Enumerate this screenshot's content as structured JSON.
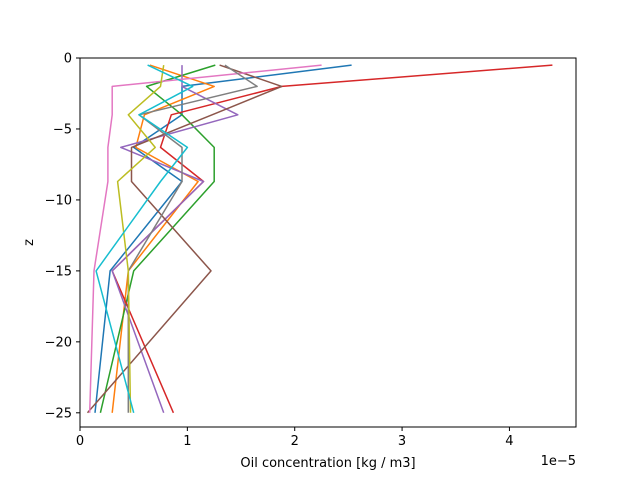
{
  "chart_data": {
    "type": "line",
    "title": "",
    "xlabel": "Oil concentration [kg / m3]",
    "ylabel": "z",
    "x_offset_label": "1e−5",
    "xlim": [
      0,
      4.62
    ],
    "ylim": [
      -26,
      0
    ],
    "x_ticks": [
      0,
      1,
      2,
      3,
      4
    ],
    "x_tick_labels": [
      "0",
      "1",
      "2",
      "3",
      "4"
    ],
    "y_ticks": [
      0,
      -5,
      -10,
      -15,
      -20,
      -25
    ],
    "y_tick_labels": [
      "0",
      "−5",
      "−10",
      "−15",
      "−20",
      "−25"
    ],
    "grid": false,
    "legend": "none",
    "z_levels": [
      -0.5,
      -2,
      -4,
      -6.3,
      -8.7,
      -15,
      -25
    ],
    "series": [
      {
        "color": "#1f77b4",
        "x": [
          2.53,
          0.95,
          0.95,
          0.5,
          0.95,
          0.28,
          0.14
        ]
      },
      {
        "color": "#ff7f0e",
        "x": [
          0.65,
          1.25,
          0.6,
          0.52,
          1.1,
          0.45,
          0.3
        ]
      },
      {
        "color": "#2ca02c",
        "x": [
          1.26,
          0.62,
          0.95,
          1.25,
          1.25,
          0.5,
          0.19
        ]
      },
      {
        "color": "#d62728",
        "x": [
          4.4,
          1.88,
          0.85,
          0.75,
          1.15,
          0.3,
          0.87
        ]
      },
      {
        "color": "#9467bd",
        "x": [
          0.95,
          0.95,
          1.47,
          0.38,
          1.15,
          0.3,
          0.78
        ]
      },
      {
        "color": "#8c564b",
        "x": [
          1.3,
          1.88,
          1.23,
          0.48,
          0.48,
          1.22,
          0.07
        ]
      },
      {
        "color": "#e377c2",
        "x": [
          2.25,
          0.3,
          0.3,
          0.26,
          0.26,
          0.13,
          0.09
        ]
      },
      {
        "color": "#7f7f7f",
        "x": [
          1.35,
          1.65,
          0.55,
          0.95,
          0.95,
          0.45,
          0.45
        ]
      },
      {
        "color": "#bcbd22",
        "x": [
          0.78,
          0.75,
          0.45,
          0.7,
          0.35,
          0.45,
          0.47
        ]
      },
      {
        "color": "#17becf",
        "x": [
          0.63,
          1.05,
          0.55,
          1.0,
          0.75,
          0.15,
          0.5
        ]
      }
    ]
  }
}
